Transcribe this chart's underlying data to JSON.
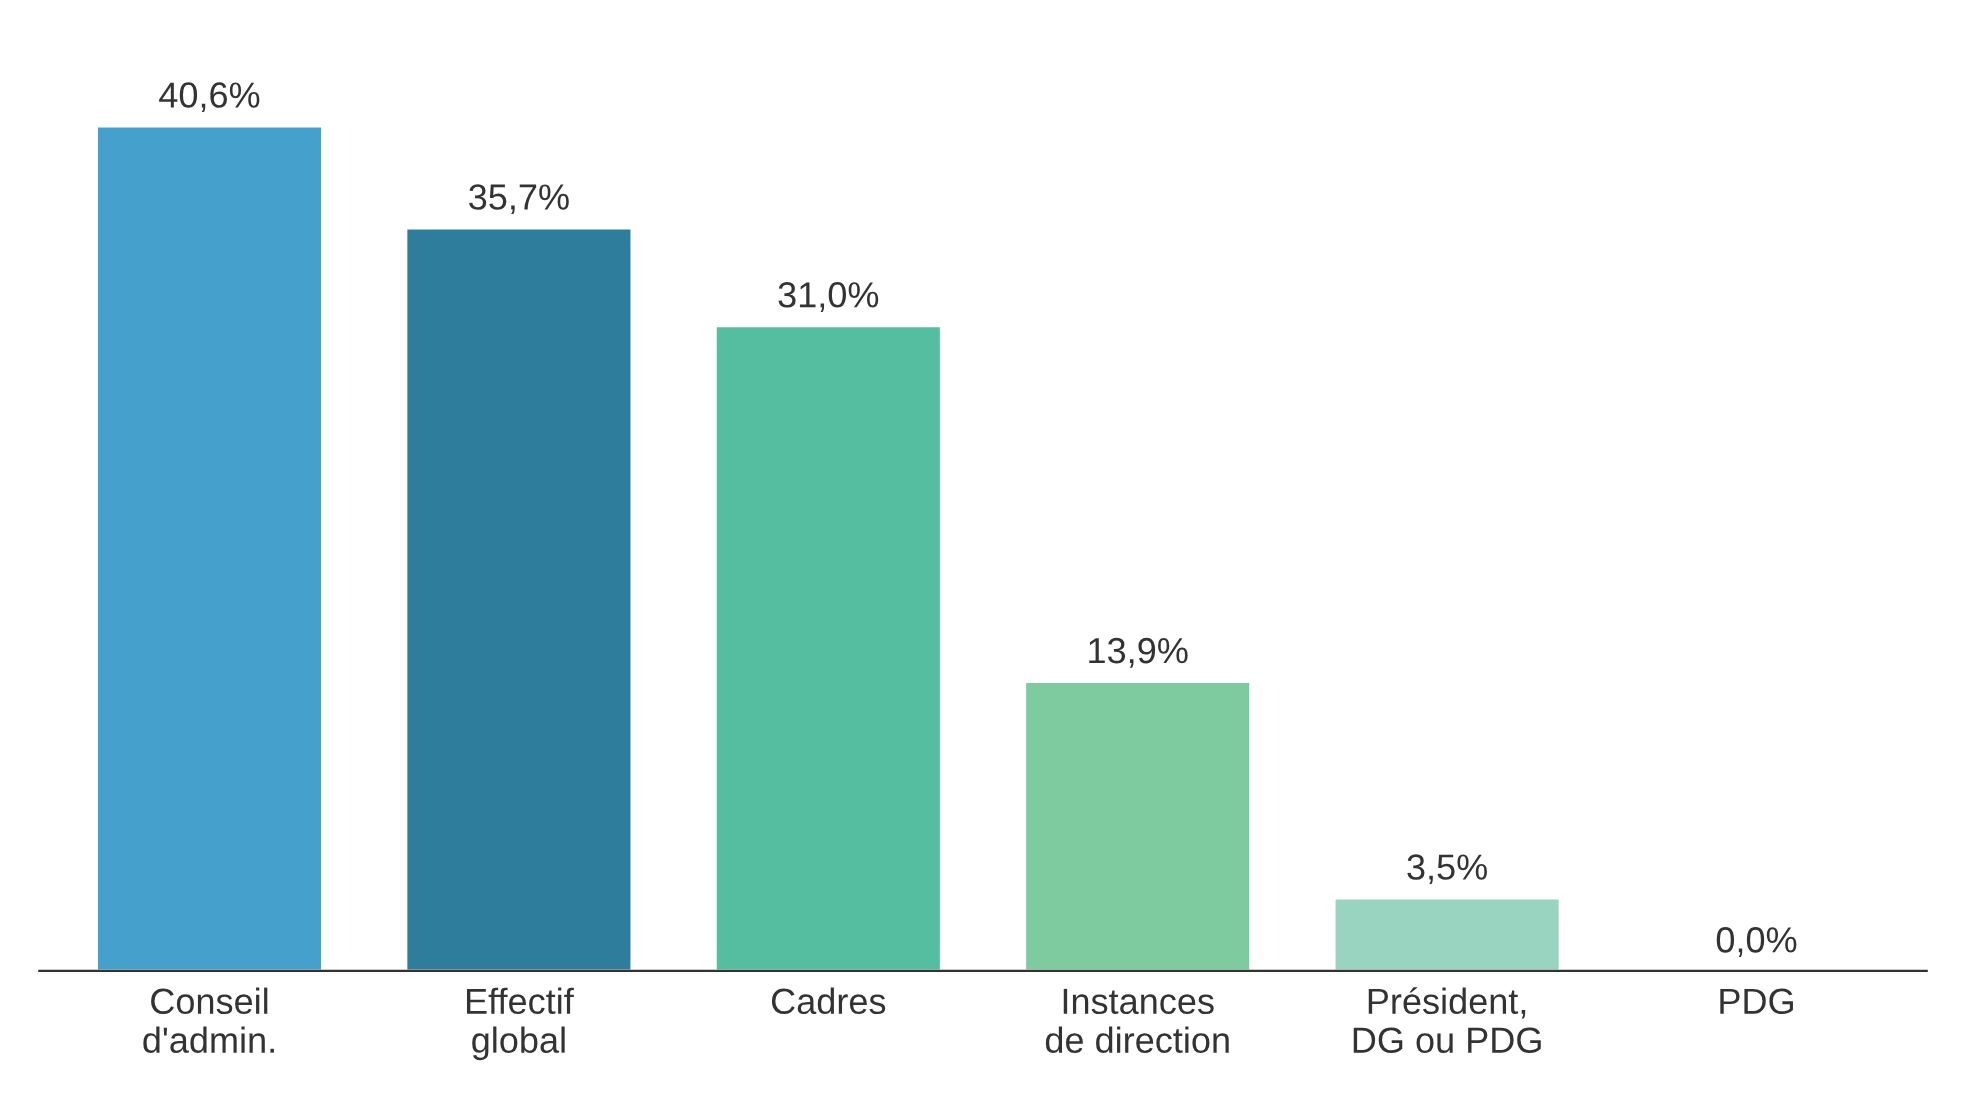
{
  "chart_data": {
    "type": "bar",
    "categories": [
      "Conseil\nd'admin.",
      "Effectif\nglobal",
      "Cadres",
      "Instances\nde direction",
      "Président,\nDG ou PDG",
      "PDG"
    ],
    "values": [
      40.6,
      35.7,
      31.0,
      13.9,
      3.5,
      0.0
    ],
    "value_labels": [
      "40,6%",
      "35,7%",
      "31,0%",
      "13,9%",
      "3,5%",
      "0,0%"
    ],
    "colors": [
      "#45a0cc",
      "#2f7d9d",
      "#56bea0",
      "#7dcb9f",
      "#98d4bf",
      null
    ],
    "grid": false
  }
}
